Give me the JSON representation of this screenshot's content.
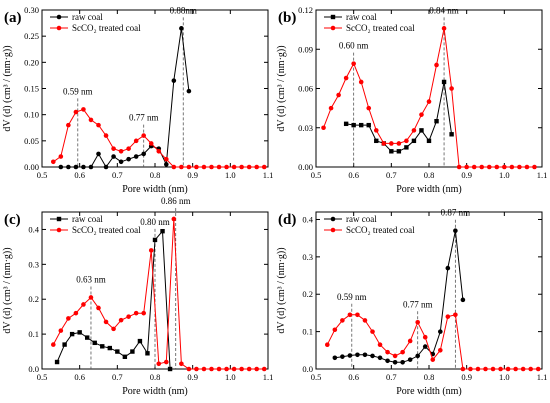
{
  "colors": {
    "raw": "#000000",
    "treated": "#ff0000",
    "guide": "#555555"
  },
  "chart_data": [
    {
      "type": "line",
      "panel_label": "(a)",
      "xlabel": "Pore width (nm)",
      "ylabel": "dV (d) (cm³ / (nm·g))",
      "xlim": [
        0.5,
        1.1
      ],
      "ylim": [
        0,
        0.3
      ],
      "xticks": [
        "0.5",
        "0.6",
        "0.7",
        "0.8",
        "0.9",
        "1.0",
        "1.1"
      ],
      "yticks": [
        "0.00",
        "0.05",
        "0.10",
        "0.15",
        "0.20",
        "0.25",
        "0.30"
      ],
      "ytick_values": [
        0,
        0.05,
        0.1,
        0.15,
        0.2,
        0.25,
        0.3
      ],
      "series": [
        {
          "name": "raw coal",
          "marker": "circle",
          "x": [
            0.55,
            0.57,
            0.59,
            0.61,
            0.63,
            0.65,
            0.67,
            0.69,
            0.71,
            0.73,
            0.75,
            0.77,
            0.79,
            0.81,
            0.83,
            0.85,
            0.87,
            0.89
          ],
          "y": [
            0,
            0,
            0,
            0,
            0,
            0.025,
            0,
            0.02,
            0.01,
            0.015,
            0.02,
            0.025,
            0.04,
            0.035,
            0.005,
            0.165,
            0.265,
            0.145
          ]
        },
        {
          "name": "ScCO₂ treated coal",
          "marker": "circle",
          "x": [
            0.53,
            0.55,
            0.57,
            0.59,
            0.61,
            0.63,
            0.65,
            0.67,
            0.69,
            0.71,
            0.73,
            0.75,
            0.77,
            0.79,
            0.81,
            0.83,
            0.85,
            0.87,
            0.89,
            0.91,
            0.93,
            0.95,
            0.97,
            0.99,
            1.01,
            1.03,
            1.05,
            1.07,
            1.09
          ],
          "y": [
            0.01,
            0.02,
            0.08,
            0.105,
            0.11,
            0.09,
            0.08,
            0.06,
            0.035,
            0.03,
            0.035,
            0.05,
            0.06,
            0.045,
            0.03,
            0.015,
            0,
            0,
            0,
            0,
            0,
            0,
            0,
            0,
            0,
            0,
            0,
            0,
            0
          ]
        }
      ],
      "annotations": [
        {
          "text": "0.59 nm",
          "x": 0.595,
          "y": 0.11
        },
        {
          "text": "0.77 nm",
          "x": 0.77,
          "y": 0.06
        },
        {
          "text": "0.88nm",
          "x": 0.875,
          "y": 0.265
        }
      ],
      "legend": "top-left"
    },
    {
      "type": "line",
      "panel_label": "(b)",
      "xlabel": "Pore width (nm)",
      "ylabel": "dV (d) (cm³ / (nm·g))",
      "xlim": [
        0.5,
        1.1
      ],
      "ylim": [
        0,
        0.12
      ],
      "xticks": [
        "0.5",
        "0.6",
        "0.7",
        "0.8",
        "0.9",
        "1.0",
        "1.1"
      ],
      "yticks": [
        "0.00",
        "0.03",
        "0.06",
        "0.09",
        "0.12"
      ],
      "ytick_values": [
        0,
        0.03,
        0.06,
        0.09,
        0.12
      ],
      "series": [
        {
          "name": "raw coal",
          "marker": "square",
          "x": [
            0.58,
            0.6,
            0.62,
            0.64,
            0.66,
            0.68,
            0.7,
            0.72,
            0.74,
            0.76,
            0.78,
            0.8,
            0.82,
            0.84,
            0.86
          ],
          "y": [
            0.033,
            0.032,
            0.032,
            0.032,
            0.02,
            0.018,
            0.012,
            0.012,
            0.015,
            0.02,
            0.028,
            0.02,
            0.035,
            0.065,
            0.025
          ]
        },
        {
          "name": "ScCO₂ treated coal",
          "marker": "circle",
          "x": [
            0.52,
            0.54,
            0.56,
            0.58,
            0.6,
            0.62,
            0.64,
            0.66,
            0.68,
            0.7,
            0.72,
            0.74,
            0.76,
            0.78,
            0.8,
            0.82,
            0.84,
            0.86,
            0.88,
            0.9,
            0.92,
            0.94,
            0.96,
            0.98,
            1.0,
            1.02,
            1.04,
            1.06,
            1.08
          ],
          "y": [
            0.03,
            0.045,
            0.055,
            0.068,
            0.079,
            0.065,
            0.045,
            0.028,
            0.018,
            0.018,
            0.018,
            0.02,
            0.028,
            0.04,
            0.05,
            0.078,
            0.106,
            0.06,
            0,
            0,
            0,
            0,
            0,
            0,
            0,
            0,
            0,
            0,
            0
          ]
        }
      ],
      "annotations": [
        {
          "text": "0.60 nm",
          "x": 0.6,
          "y": 0.079
        },
        {
          "text": "0.84 nm",
          "x": 0.84,
          "y": 0.106
        }
      ],
      "legend": "top-left"
    },
    {
      "type": "line",
      "panel_label": "(c)",
      "xlabel": "Pore width (nm)",
      "ylabel": "dV (d) (cm³ / (nm·g))",
      "xlim": [
        0.5,
        1.1
      ],
      "ylim": [
        0,
        0.45
      ],
      "xticks": [
        "0.5",
        "0.6",
        "0.7",
        "0.8",
        "0.9",
        "1.0",
        "1.1"
      ],
      "yticks": [
        "0.0",
        "0.1",
        "0.2",
        "0.3",
        "0.4"
      ],
      "ytick_values": [
        0,
        0.1,
        0.2,
        0.3,
        0.4
      ],
      "series": [
        {
          "name": "raw coal",
          "marker": "square",
          "x": [
            0.54,
            0.56,
            0.58,
            0.6,
            0.62,
            0.64,
            0.66,
            0.68,
            0.7,
            0.72,
            0.74,
            0.76,
            0.78,
            0.8,
            0.82,
            0.84
          ],
          "y": [
            0.02,
            0.07,
            0.1,
            0.105,
            0.09,
            0.075,
            0.065,
            0.06,
            0.05,
            0.035,
            0.05,
            0.08,
            0.045,
            0.37,
            0.395,
            0
          ]
        },
        {
          "name": "ScCO₂ treated coal",
          "marker": "circle",
          "x": [
            0.53,
            0.55,
            0.57,
            0.59,
            0.61,
            0.63,
            0.65,
            0.67,
            0.69,
            0.71,
            0.73,
            0.75,
            0.77,
            0.79,
            0.81,
            0.83,
            0.85,
            0.87,
            0.89,
            0.91,
            0.93,
            0.95,
            0.97,
            0.99,
            1.01,
            1.03,
            1.05,
            1.07,
            1.09
          ],
          "y": [
            0.07,
            0.11,
            0.145,
            0.16,
            0.185,
            0.205,
            0.175,
            0.135,
            0.115,
            0.14,
            0.15,
            0.16,
            0.16,
            0.34,
            0.015,
            0.02,
            0.43,
            0.015,
            0,
            0,
            0,
            0,
            0,
            0,
            0,
            0,
            0,
            0,
            0
          ]
        }
      ],
      "annotations": [
        {
          "text": "0.63 nm",
          "x": 0.63,
          "y": 0.205
        },
        {
          "text": "0.80 nm",
          "x": 0.8,
          "y": 0.37
        },
        {
          "text": "0.86 nm",
          "x": 0.855,
          "y": 0.43
        }
      ],
      "legend": "top-left"
    },
    {
      "type": "line",
      "panel_label": "(d)",
      "xlabel": "Pore width (nm)",
      "ylabel": "dV (d) (cm³ / (nm·g))",
      "xlim": [
        0.5,
        1.1
      ],
      "ylim": [
        0,
        0.42
      ],
      "xticks": [
        "0.5",
        "0.6",
        "0.7",
        "0.8",
        "0.9",
        "1.0",
        "1.1"
      ],
      "yticks": [
        "0.0",
        "0.1",
        "0.2",
        "0.3",
        "0.4"
      ],
      "ytick_values": [
        0,
        0.1,
        0.2,
        0.3,
        0.4
      ],
      "series": [
        {
          "name": "raw coal",
          "marker": "circle",
          "x": [
            0.55,
            0.57,
            0.59,
            0.61,
            0.63,
            0.65,
            0.67,
            0.69,
            0.71,
            0.73,
            0.75,
            0.77,
            0.79,
            0.81,
            0.83,
            0.85,
            0.87,
            0.89
          ],
          "y": [
            0.03,
            0.033,
            0.036,
            0.038,
            0.038,
            0.035,
            0.03,
            0.022,
            0.018,
            0.018,
            0.025,
            0.035,
            0.06,
            0.04,
            0.1,
            0.27,
            0.37,
            0.185
          ]
        },
        {
          "name": "ScCO₂ treated coal",
          "marker": "circle",
          "x": [
            0.53,
            0.55,
            0.57,
            0.59,
            0.61,
            0.63,
            0.65,
            0.67,
            0.69,
            0.71,
            0.73,
            0.75,
            0.77,
            0.79,
            0.81,
            0.83,
            0.85,
            0.87,
            0.89,
            0.91,
            0.93,
            0.95,
            0.97,
            0.99,
            1.01,
            1.03,
            1.05,
            1.07,
            1.09
          ],
          "y": [
            0.065,
            0.105,
            0.13,
            0.145,
            0.145,
            0.13,
            0.1,
            0.065,
            0.045,
            0.035,
            0.045,
            0.075,
            0.125,
            0.085,
            0.025,
            0.05,
            0.14,
            0.145,
            0,
            0,
            0,
            0,
            0,
            0,
            0,
            0,
            0,
            0,
            0
          ]
        }
      ],
      "annotations": [
        {
          "text": "0.59 nm",
          "x": 0.595,
          "y": 0.145
        },
        {
          "text": "0.77 nm",
          "x": 0.77,
          "y": 0.125
        },
        {
          "text": "0.87 nm",
          "x": 0.87,
          "y": 0.37
        }
      ],
      "legend": "top-left"
    }
  ]
}
